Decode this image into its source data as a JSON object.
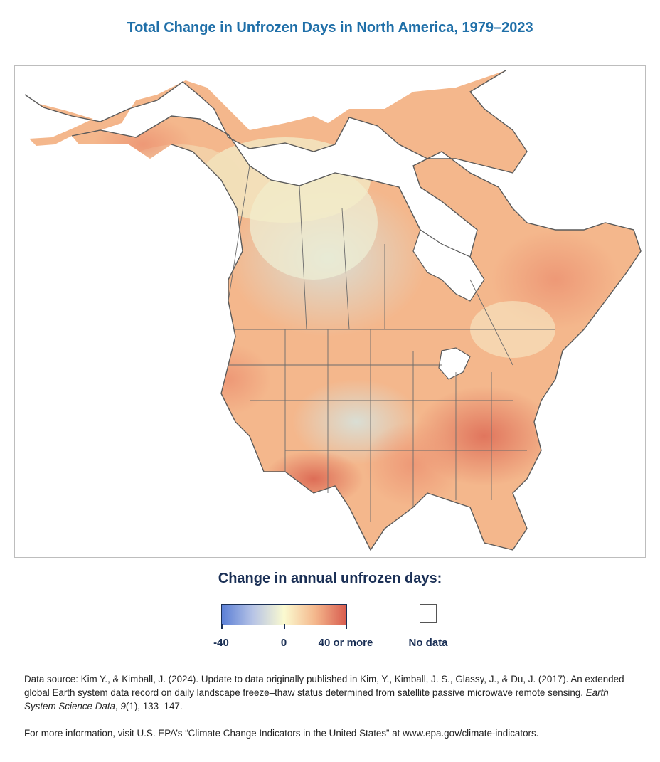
{
  "title": "Total Change in Unfrozen Days in North America, 1979–2023",
  "legend": {
    "title": "Change in annual unfrozen days:",
    "ticks": [
      "-40",
      "0",
      "40 or more"
    ],
    "range": [
      -40,
      40
    ],
    "colors": [
      "#5b7fd6",
      "#b7c4e6",
      "#fbfad0",
      "#f4b78c",
      "#d85c4f"
    ],
    "nodata_label": "No data"
  },
  "source": {
    "prefix": "Data source: Kim Y., & Kimball, J. (2024). Update to data originally published in Kim, Y., Kimball, J. S., Glassy, J., & Du, J. (2017). An extended global Earth system data record on daily landscape freeze–thaw status determined from satellite passive microwave remote sensing. ",
    "journal": "Earth System Science Data",
    "separator": ", ",
    "volume": "9",
    "suffix": "(1), 133–147."
  },
  "info": "For more information, visit U.S. EPA’s “Climate Change Indicators in the United States” at www.epa.gov/climate-indicators.",
  "map": {
    "region": "North America",
    "colors": {
      "land_warm": "#f4b78c",
      "land_hot": "#e07b61",
      "land_neutral": "#f6efcd",
      "land_cool": "#dde3d6",
      "boundary": "#5a5a5a",
      "water": "#ffffff"
    }
  }
}
